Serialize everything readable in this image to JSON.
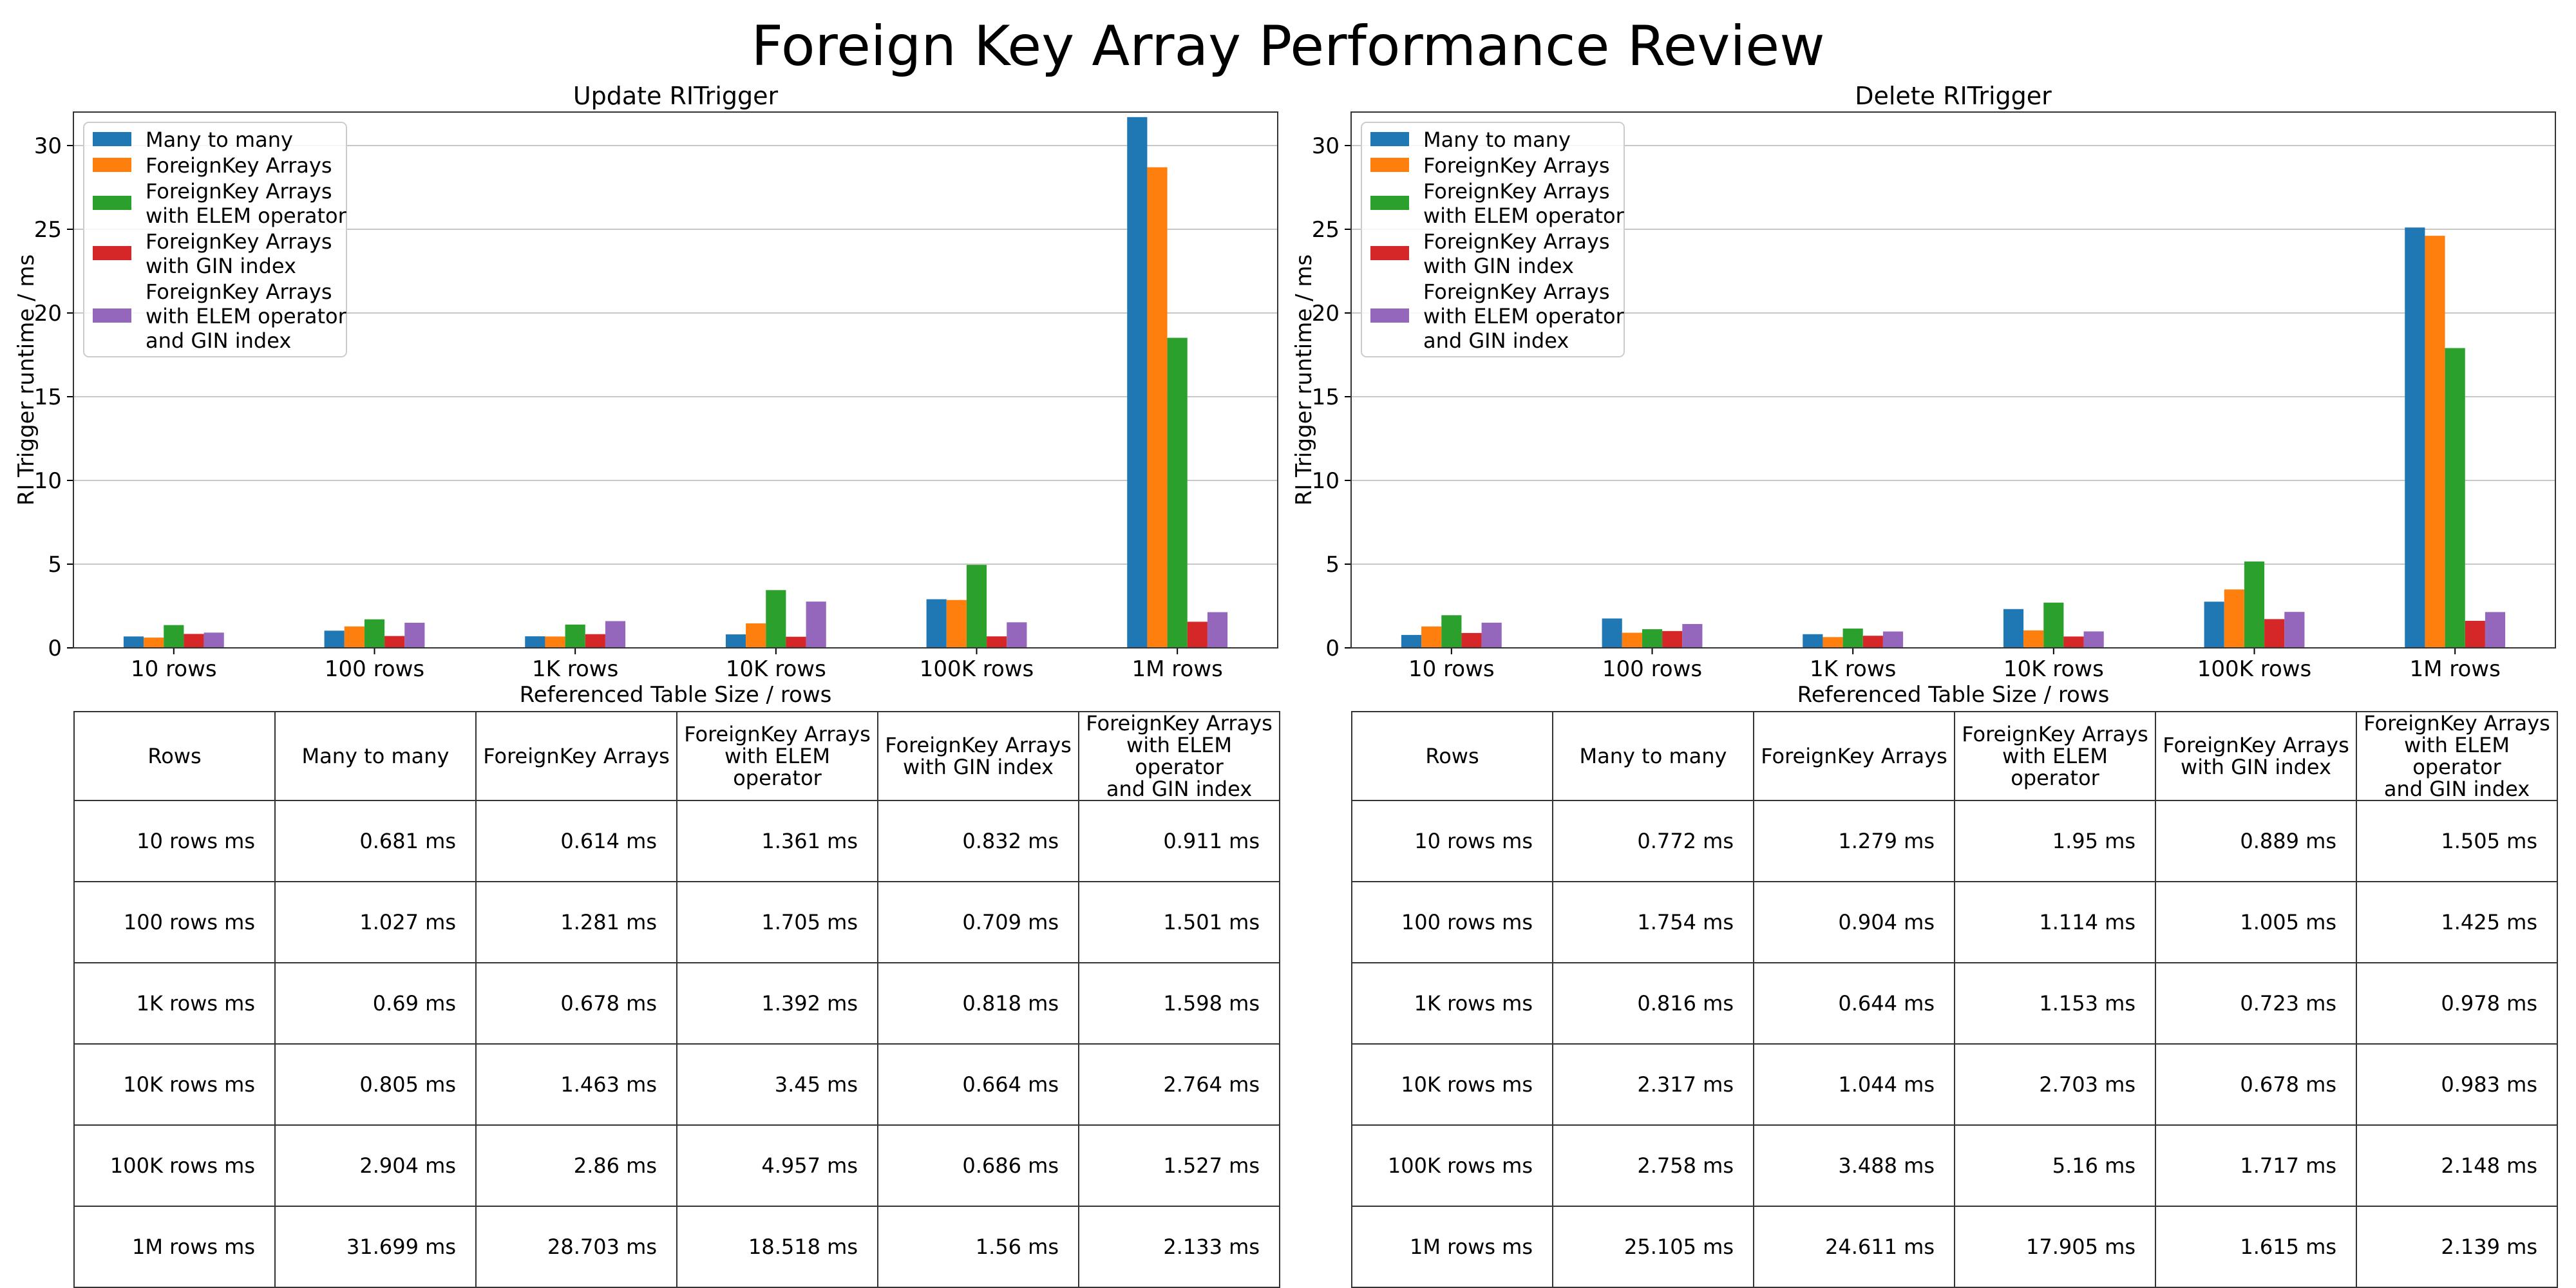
{
  "suptitle": "Foreign Key Array Performance Review",
  "colors": [
    "#1f77b4",
    "#ff7f0e",
    "#2ca02c",
    "#d62728",
    "#9467bd"
  ],
  "chart_data": [
    {
      "type": "bar",
      "title": "Update RITrigger",
      "xlabel": "Referenced Table Size / rows",
      "ylabel": "RI Trigger runtime / ms",
      "ylim": [
        0,
        32
      ],
      "yticks": [
        0,
        5,
        10,
        15,
        20,
        25,
        30
      ],
      "grid": "y",
      "legend_position": "upper left",
      "categories": [
        "10 rows",
        "100 rows",
        "1K rows",
        "10K rows",
        "100K rows",
        "1M rows"
      ],
      "series": [
        {
          "name": "Many to many",
          "values": [
            0.681,
            1.027,
            0.69,
            0.805,
            2.904,
            31.699
          ]
        },
        {
          "name": "ForeignKey Arrays",
          "values": [
            0.614,
            1.281,
            0.678,
            1.463,
            2.86,
            28.703
          ]
        },
        {
          "name": "ForeignKey Arrays\nwith ELEM operator",
          "values": [
            1.361,
            1.705,
            1.392,
            3.45,
            4.957,
            18.518
          ]
        },
        {
          "name": "ForeignKey Arrays\nwith GIN index",
          "values": [
            0.832,
            0.709,
            0.818,
            0.664,
            0.686,
            1.56
          ]
        },
        {
          "name": "ForeignKey Arrays\nwith ELEM operator\nand GIN index",
          "values": [
            0.911,
            1.501,
            1.598,
            2.764,
            1.527,
            2.133
          ]
        }
      ]
    },
    {
      "type": "bar",
      "title": "Delete RITrigger",
      "xlabel": "Referenced Table Size / rows",
      "ylabel": "RI Trigger runtime / ms",
      "ylim": [
        0,
        32
      ],
      "yticks": [
        0,
        5,
        10,
        15,
        20,
        25,
        30
      ],
      "grid": "y",
      "legend_position": "upper left",
      "categories": [
        "10 rows",
        "100 rows",
        "1K rows",
        "10K rows",
        "100K rows",
        "1M rows"
      ],
      "series": [
        {
          "name": "Many to many",
          "values": [
            0.772,
            1.754,
            0.816,
            2.317,
            2.758,
            25.105
          ]
        },
        {
          "name": "ForeignKey Arrays",
          "values": [
            1.279,
            0.904,
            0.644,
            1.044,
            3.488,
            24.611
          ]
        },
        {
          "name": "ForeignKey Arrays\nwith ELEM operator",
          "values": [
            1.95,
            1.114,
            1.153,
            2.703,
            5.16,
            17.905
          ]
        },
        {
          "name": "ForeignKey Arrays\nwith GIN index",
          "values": [
            0.889,
            1.005,
            0.723,
            0.678,
            1.717,
            1.615
          ]
        },
        {
          "name": "ForeignKey Arrays\nwith ELEM operator\nand GIN index",
          "values": [
            1.505,
            1.425,
            0.978,
            0.983,
            2.148,
            2.139
          ]
        }
      ]
    }
  ],
  "tables": [
    {
      "headers": [
        "Rows",
        "Many to many",
        "ForeignKey Arrays",
        "ForeignKey Arrays\nwith ELEM operator",
        "ForeignKey Arrays\nwith GIN index",
        "ForeignKey Arrays\nwith ELEM operator\nand GIN index"
      ],
      "rows": [
        [
          "10 rows ms",
          "0.681 ms",
          "0.614 ms",
          "1.361 ms",
          "0.832 ms",
          "0.911 ms"
        ],
        [
          "100 rows ms",
          "1.027 ms",
          "1.281 ms",
          "1.705 ms",
          "0.709 ms",
          "1.501 ms"
        ],
        [
          "1K rows ms",
          "0.69 ms",
          "0.678 ms",
          "1.392 ms",
          "0.818 ms",
          "1.598 ms"
        ],
        [
          "10K rows ms",
          "0.805 ms",
          "1.463 ms",
          "3.45 ms",
          "0.664 ms",
          "2.764 ms"
        ],
        [
          "100K rows ms",
          "2.904 ms",
          "2.86 ms",
          "4.957 ms",
          "0.686 ms",
          "1.527 ms"
        ],
        [
          "1M rows ms",
          "31.699 ms",
          "28.703 ms",
          "18.518 ms",
          "1.56 ms",
          "2.133 ms"
        ]
      ]
    },
    {
      "headers": [
        "Rows",
        "Many to many",
        "ForeignKey Arrays",
        "ForeignKey Arrays\nwith ELEM operator",
        "ForeignKey Arrays\nwith GIN index",
        "ForeignKey Arrays\nwith ELEM operator\nand GIN index"
      ],
      "rows": [
        [
          "10 rows ms",
          "0.772 ms",
          "1.279 ms",
          "1.95 ms",
          "0.889 ms",
          "1.505 ms"
        ],
        [
          "100 rows ms",
          "1.754 ms",
          "0.904 ms",
          "1.114 ms",
          "1.005 ms",
          "1.425 ms"
        ],
        [
          "1K rows ms",
          "0.816 ms",
          "0.644 ms",
          "1.153 ms",
          "0.723 ms",
          "0.978 ms"
        ],
        [
          "10K rows ms",
          "2.317 ms",
          "1.044 ms",
          "2.703 ms",
          "0.678 ms",
          "0.983 ms"
        ],
        [
          "100K rows ms",
          "2.758 ms",
          "3.488 ms",
          "5.16 ms",
          "1.717 ms",
          "2.148 ms"
        ],
        [
          "1M rows ms",
          "25.105 ms",
          "24.611 ms",
          "17.905 ms",
          "1.615 ms",
          "2.139 ms"
        ]
      ]
    }
  ]
}
